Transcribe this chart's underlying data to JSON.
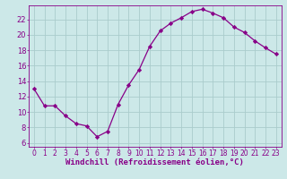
{
  "x": [
    0,
    1,
    2,
    3,
    4,
    5,
    6,
    7,
    8,
    9,
    10,
    11,
    12,
    13,
    14,
    15,
    16,
    17,
    18,
    19,
    20,
    21,
    22,
    23
  ],
  "y": [
    13.0,
    10.8,
    10.8,
    9.5,
    8.5,
    8.2,
    6.8,
    7.5,
    11.0,
    13.5,
    15.5,
    18.5,
    20.5,
    21.5,
    22.2,
    23.0,
    23.3,
    22.8,
    22.2,
    21.0,
    20.3,
    19.2,
    18.3,
    17.5
  ],
  "line_color": "#880088",
  "marker": "D",
  "marker_size": 2.2,
  "bg_color": "#cce8e8",
  "grid_color": "#aacccc",
  "xlabel": "Windchill (Refroidissement éolien,°C)",
  "xlim": [
    -0.5,
    23.5
  ],
  "ylim": [
    5.5,
    23.8
  ],
  "yticks": [
    6,
    8,
    10,
    12,
    14,
    16,
    18,
    20,
    22
  ],
  "xticks": [
    0,
    1,
    2,
    3,
    4,
    5,
    6,
    7,
    8,
    9,
    10,
    11,
    12,
    13,
    14,
    15,
    16,
    17,
    18,
    19,
    20,
    21,
    22,
    23
  ],
  "tick_color": "#880088",
  "label_color": "#880088",
  "font_size_x": 5.5,
  "font_size_y": 6.0,
  "font_size_xlabel": 6.5,
  "linewidth": 0.9
}
